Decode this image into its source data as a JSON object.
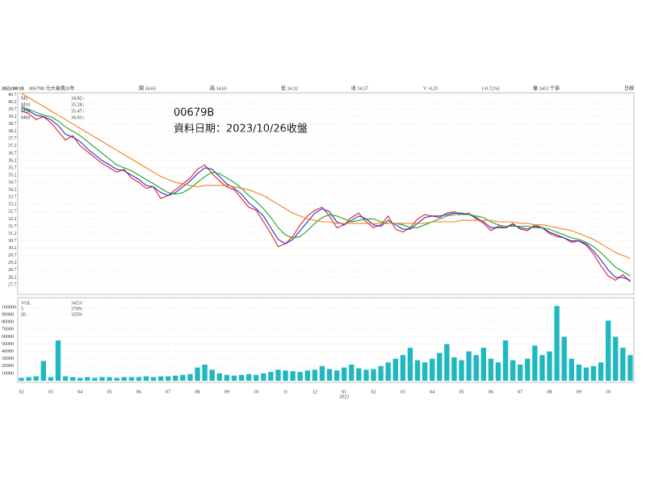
{
  "chart_data": {
    "type": "line",
    "title": "00679B",
    "subtitle": "資料日期：2023/10/26收盤",
    "header": [
      "2022/08/18",
      "00679B 元大美債20年",
      "開 34.65",
      "高 34.65",
      "低 34.32",
      "收 34.57",
      "V -0.25",
      "(-0.72%)",
      "量 3453 千張",
      "日線"
    ],
    "ma_values": [
      "34.82↓",
      "35.28↓",
      "35.47↓",
      "36.03↓"
    ],
    "categories": [
      "02",
      null,
      null,
      null,
      "03",
      null,
      null,
      null,
      "04",
      null,
      null,
      null,
      "05",
      null,
      null,
      null,
      "06",
      null,
      null,
      null,
      "07",
      null,
      null,
      null,
      "08",
      null,
      null,
      null,
      "09",
      null,
      null,
      null,
      "10",
      null,
      null,
      null,
      "11",
      null,
      null,
      null,
      "12",
      null,
      null,
      null,
      "01",
      null,
      null,
      null,
      "02",
      null,
      null,
      null,
      "03",
      null,
      null,
      null,
      "04",
      null,
      null,
      null,
      "05",
      null,
      null,
      null,
      "06",
      null,
      null,
      null,
      "07",
      null,
      null,
      null,
      "08",
      null,
      null,
      null,
      "09",
      null,
      null,
      null,
      "10",
      null,
      null,
      null
    ],
    "year_label": "2023",
    "ylim": [
      27.2,
      41.0
    ],
    "yticks": [
      27.7,
      28.2,
      28.7,
      29.2,
      29.7,
      30.2,
      30.7,
      31.2,
      31.7,
      32.2,
      32.7,
      33.2,
      33.7,
      34.2,
      34.7,
      35.2,
      35.7,
      36.2,
      36.7,
      37.2,
      37.7,
      38.2,
      38.7,
      39.2,
      39.7,
      40.2,
      40.7
    ],
    "series": [
      {
        "name": "M5",
        "color": "#e02020",
        "values": [
          39.6,
          39.4,
          39.0,
          39.2,
          38.8,
          38.2,
          37.6,
          37.9,
          37.2,
          36.8,
          36.4,
          36.0,
          35.7,
          35.4,
          35.6,
          35.0,
          34.7,
          34.3,
          34.4,
          33.6,
          33.8,
          34.2,
          34.6,
          35.0,
          35.6,
          35.9,
          35.3,
          34.8,
          34.4,
          34.2,
          33.6,
          33.0,
          32.8,
          32.0,
          31.2,
          30.3,
          30.5,
          31.0,
          31.8,
          32.4,
          32.8,
          33.0,
          32.4,
          31.6,
          31.8,
          32.3,
          32.6,
          32.0,
          31.6,
          31.8,
          32.4,
          31.5,
          31.3,
          31.6,
          32.2,
          32.5,
          32.4,
          32.3,
          32.6,
          32.7,
          32.5,
          32.6,
          32.2,
          31.9,
          31.4,
          31.7,
          31.6,
          31.9,
          31.5,
          31.4,
          31.8,
          31.6,
          31.2,
          31.0,
          30.9,
          30.6,
          30.7,
          30.4,
          29.8,
          29.0,
          28.3,
          28.0,
          28.4,
          27.9
        ]
      },
      {
        "name": "M10",
        "color": "#2030d0",
        "values": [
          39.8,
          39.6,
          39.3,
          39.2,
          39.0,
          38.6,
          38.0,
          37.8,
          37.5,
          37.0,
          36.6,
          36.2,
          35.9,
          35.6,
          35.5,
          35.2,
          34.9,
          34.5,
          34.4,
          34.0,
          33.8,
          34.0,
          34.4,
          34.8,
          35.3,
          35.7,
          35.6,
          35.1,
          34.6,
          34.3,
          33.9,
          33.3,
          32.9,
          32.4,
          31.6,
          30.8,
          30.5,
          30.8,
          31.4,
          32.0,
          32.6,
          32.9,
          32.7,
          32.0,
          31.8,
          32.1,
          32.4,
          32.2,
          31.8,
          31.7,
          32.1,
          31.8,
          31.5,
          31.5,
          31.9,
          32.3,
          32.4,
          32.4,
          32.5,
          32.6,
          32.6,
          32.5,
          32.3,
          32.0,
          31.6,
          31.6,
          31.6,
          31.8,
          31.6,
          31.5,
          31.7,
          31.6,
          31.3,
          31.1,
          30.9,
          30.7,
          30.7,
          30.5,
          30.0,
          29.4,
          28.7,
          28.2,
          28.2,
          28.0
        ]
      },
      {
        "name": "M20",
        "color": "#20a020",
        "values": [
          39.9,
          39.7,
          39.5,
          39.3,
          39.2,
          38.9,
          38.5,
          38.2,
          37.9,
          37.5,
          37.1,
          36.7,
          36.3,
          35.9,
          35.7,
          35.5,
          35.2,
          34.9,
          34.6,
          34.3,
          34.0,
          33.9,
          34.0,
          34.3,
          34.7,
          35.1,
          35.4,
          35.3,
          35.0,
          34.7,
          34.3,
          33.8,
          33.4,
          32.9,
          32.3,
          31.6,
          31.1,
          30.9,
          31.0,
          31.4,
          31.9,
          32.3,
          32.5,
          32.4,
          32.2,
          32.0,
          32.1,
          32.2,
          32.2,
          32.0,
          31.9,
          31.9,
          31.8,
          31.6,
          31.6,
          31.8,
          32.0,
          32.2,
          32.4,
          32.5,
          32.5,
          32.5,
          32.4,
          32.3,
          32.0,
          31.8,
          31.7,
          31.7,
          31.7,
          31.7,
          31.6,
          31.6,
          31.5,
          31.3,
          31.1,
          30.9,
          30.8,
          30.6,
          30.3,
          29.9,
          29.4,
          28.9,
          28.6,
          28.3
        ]
      },
      {
        "name": "M60",
        "color": "#f08020",
        "values": [
          40.8,
          40.5,
          40.2,
          39.9,
          39.6,
          39.3,
          39.0,
          38.7,
          38.4,
          38.1,
          37.8,
          37.5,
          37.2,
          36.9,
          36.6,
          36.3,
          36.0,
          35.7,
          35.4,
          35.1,
          34.9,
          34.7,
          34.6,
          34.5,
          34.4,
          34.5,
          34.5,
          34.5,
          34.5,
          34.4,
          34.3,
          34.2,
          34.0,
          33.8,
          33.5,
          33.2,
          32.9,
          32.6,
          32.4,
          32.2,
          32.1,
          32.0,
          32.0,
          31.9,
          31.9,
          31.9,
          31.9,
          31.9,
          31.9,
          31.9,
          31.9,
          31.9,
          31.9,
          31.9,
          31.9,
          31.9,
          32.0,
          32.0,
          32.0,
          32.0,
          32.1,
          32.1,
          32.1,
          32.1,
          32.1,
          32.0,
          32.0,
          32.0,
          31.9,
          31.9,
          31.8,
          31.8,
          31.7,
          31.6,
          31.5,
          31.4,
          31.2,
          31.0,
          30.8,
          30.5,
          30.2,
          29.9,
          29.7,
          29.5
        ]
      }
    ],
    "volume": {
      "legend": [
        "VOL",
        "3453↑",
        "5",
        "3709↓",
        "20",
        "3259↑"
      ],
      "color": "#20b8c0",
      "ylim": [
        0,
        110000
      ],
      "yticks": [
        10000,
        20000,
        30000,
        40000,
        50000,
        60000,
        70000,
        80000,
        90000,
        100000
      ],
      "values": [
        4000,
        5000,
        6000,
        27000,
        5000,
        55000,
        6000,
        5000,
        4000,
        5000,
        4000,
        5000,
        5000,
        4000,
        5000,
        5000,
        5000,
        6000,
        5000,
        6000,
        6000,
        7000,
        8000,
        9000,
        18000,
        22000,
        15000,
        10000,
        8000,
        7000,
        8000,
        9000,
        8000,
        10000,
        12000,
        15000,
        14000,
        13000,
        12000,
        14000,
        15000,
        20000,
        16000,
        14000,
        18000,
        22000,
        17000,
        15000,
        16000,
        20000,
        25000,
        30000,
        35000,
        45000,
        28000,
        25000,
        30000,
        38000,
        50000,
        32000,
        28000,
        40000,
        35000,
        45000,
        30000,
        25000,
        55000,
        28000,
        22000,
        30000,
        48000,
        35000,
        40000,
        102000,
        60000,
        30000,
        22000,
        18000,
        20000,
        25000,
        82000,
        60000,
        45000,
        35000
      ]
    },
    "grid": true
  }
}
